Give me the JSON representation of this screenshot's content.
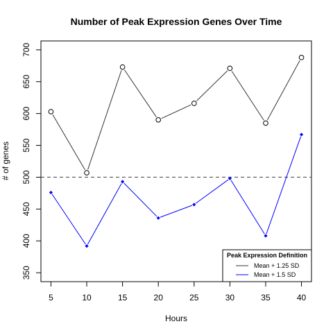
{
  "chart_data": {
    "type": "line",
    "title": "Number of Peak Expression Genes Over Time",
    "xlabel": "Hours",
    "ylabel": "# of genes",
    "x": [
      5,
      10,
      15,
      20,
      25,
      30,
      35,
      40
    ],
    "xlim": [
      3.6,
      41.4
    ],
    "ylim": [
      336,
      714
    ],
    "xticks": [
      5,
      10,
      15,
      20,
      25,
      30,
      35,
      40
    ],
    "yticks": [
      350,
      400,
      450,
      500,
      550,
      600,
      650,
      700
    ],
    "reference_line": {
      "y": 500,
      "style": "dashed",
      "color": "#555555"
    },
    "grid": false,
    "legend": {
      "title": "Peak Expression Definition",
      "position": "bottom-right"
    },
    "series": [
      {
        "name": "Mean + 1.25 SD",
        "values": [
          603,
          507,
          673,
          590,
          616,
          671,
          585,
          688
        ],
        "color": "#333333",
        "marker": "open-circle"
      },
      {
        "name": "Mean + 1.5 SD",
        "values": [
          476,
          392,
          493,
          436,
          457,
          498,
          408,
          567
        ],
        "color": "#0000ff",
        "marker": "filled-diamond"
      }
    ]
  }
}
